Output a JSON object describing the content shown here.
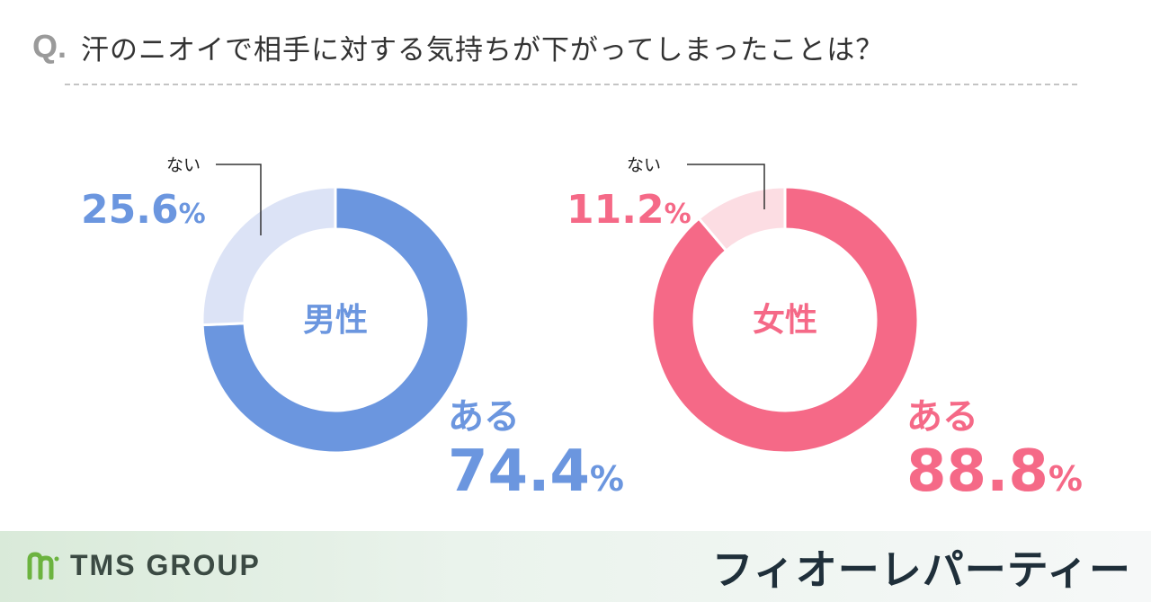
{
  "question": {
    "prefix": "Q.",
    "text": "汗のニオイで相手に対する気持ちが下がってしまったことは？"
  },
  "chart_data": [
    {
      "type": "pie",
      "title": "男性",
      "slices": [
        {
          "label": "ある",
          "value": 74.4,
          "value_text": "74.4",
          "unit": "%"
        },
        {
          "label": "ない",
          "value": 25.6,
          "value_text": "25.6",
          "unit": "%"
        }
      ],
      "colors": {
        "main": "#6b96df",
        "rest": "#dce3f6",
        "label": "#6b96df"
      }
    },
    {
      "type": "pie",
      "title": "女性",
      "slices": [
        {
          "label": "ある",
          "value": 88.8,
          "value_text": "88.8",
          "unit": "%"
        },
        {
          "label": "ない",
          "value": 11.2,
          "value_text": "11.2",
          "unit": "%"
        }
      ],
      "colors": {
        "main": "#f56987",
        "rest": "#fcdde3",
        "label": "#f56987"
      }
    }
  ],
  "footer": {
    "left_brand": "TMS GROUP",
    "left_icon": "tms-logo-icon",
    "right_brand": "フィオーレパーティー"
  }
}
